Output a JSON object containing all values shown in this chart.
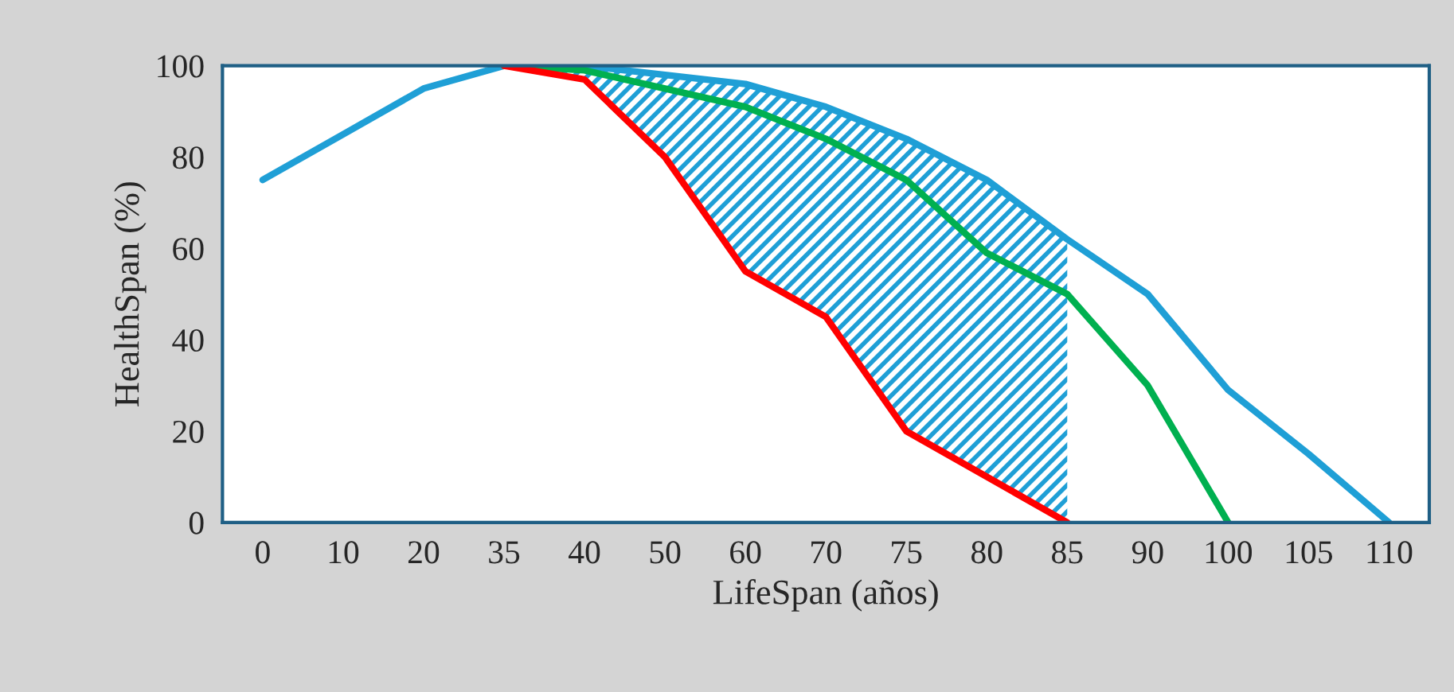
{
  "chart_data": {
    "type": "line",
    "xlabel": "LifeSpan (años)",
    "ylabel": "HealthSpan (%)",
    "categories": [
      "0",
      "10",
      "20",
      "35",
      "40",
      "50",
      "60",
      "70",
      "75",
      "80",
      "85",
      "90",
      "100",
      "105",
      "110"
    ],
    "series": [
      {
        "color": "#1f9fd6",
        "values": [
          75,
          85,
          95,
          100,
          100,
          98,
          96,
          91,
          84,
          75,
          62,
          50,
          29,
          15,
          0
        ],
        "lower": [
          null,
          null,
          null,
          100,
          97,
          80,
          55,
          45,
          20,
          10,
          0,
          null,
          null,
          null,
          null
        ],
        "upper": [
          null,
          null,
          null,
          100,
          100,
          98,
          96,
          91,
          84,
          75,
          62,
          null,
          null,
          null,
          null
        ]
      },
      {
        "color": "#00b050",
        "values": [
          null,
          null,
          null,
          100,
          99,
          95,
          91,
          84,
          75,
          59,
          50,
          30,
          0,
          null,
          null
        ]
      },
      {
        "color": "#ff0000",
        "values": [
          null,
          null,
          null,
          100,
          97,
          80,
          55,
          45,
          20,
          10,
          0,
          null,
          null,
          null,
          null
        ]
      }
    ],
    "ylim": [
      0,
      100
    ],
    "yticks": [
      0,
      20,
      40,
      60,
      80,
      100
    ],
    "grid": false,
    "legend": false,
    "marker": "none",
    "line_style": "solid"
  }
}
